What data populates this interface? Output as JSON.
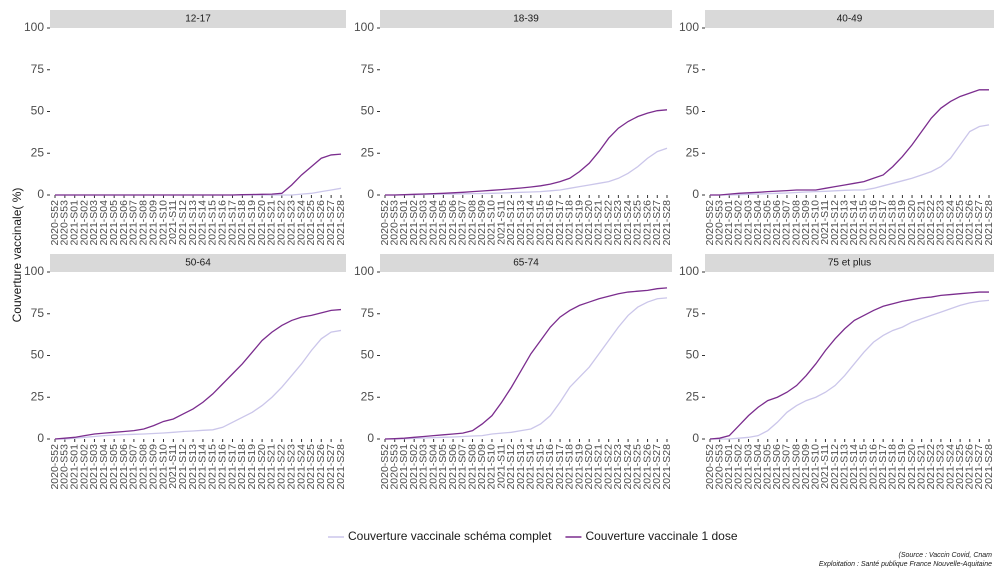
{
  "chart_data": [
    {
      "type": "line",
      "title": "12-17",
      "categories": [
        "2020-S52",
        "2020-S53",
        "2021-S01",
        "2021-S02",
        "2021-S03",
        "2021-S04",
        "2021-S05",
        "2021-S06",
        "2021-S07",
        "2021-S08",
        "2021-S09",
        "2021-S10",
        "2021-S11",
        "2021-S12",
        "2021-S13",
        "2021-S14",
        "2021-S15",
        "2021-S16",
        "2021-S17",
        "2021-S18",
        "2021-S19",
        "2021-S20",
        "2021-S21",
        "2021-S22",
        "2021-S23",
        "2021-S24",
        "2021-S25",
        "2021-S26",
        "2021-S27",
        "2021-S28"
      ],
      "series": [
        {
          "name": "Couverture vaccinale schéma complet",
          "color": "#cbc6ea",
          "values": [
            0,
            0,
            0,
            0,
            0,
            0,
            0,
            0,
            0,
            0,
            0,
            0,
            0,
            0,
            0,
            0,
            0,
            0,
            0,
            0,
            0,
            0,
            0,
            0,
            0,
            0.5,
            1,
            2,
            3,
            4
          ]
        },
        {
          "name": "Couverture vaccinale 1 dose",
          "color": "#7b2d8e",
          "values": [
            0,
            0,
            0,
            0,
            0,
            0,
            0,
            0,
            0,
            0,
            0,
            0,
            0,
            0,
            0,
            0,
            0,
            0,
            0,
            0.2,
            0.3,
            0.4,
            0.5,
            1,
            6,
            12,
            17,
            22,
            24,
            24.5
          ]
        }
      ],
      "ylim": [
        0,
        100
      ],
      "yticks": [
        0,
        25,
        50,
        75,
        100
      ],
      "grid": false
    },
    {
      "type": "line",
      "title": "18-39",
      "categories": [
        "2020-S52",
        "2020-S53",
        "2021-S01",
        "2021-S02",
        "2021-S03",
        "2021-S04",
        "2021-S05",
        "2021-S06",
        "2021-S07",
        "2021-S08",
        "2021-S09",
        "2021-S10",
        "2021-S11",
        "2021-S12",
        "2021-S13",
        "2021-S14",
        "2021-S15",
        "2021-S16",
        "2021-S17",
        "2021-S18",
        "2021-S19",
        "2021-S20",
        "2021-S21",
        "2021-S22",
        "2021-S23",
        "2021-S24",
        "2021-S25",
        "2021-S26",
        "2021-S27",
        "2021-S28"
      ],
      "series": [
        {
          "name": "Couverture vaccinale schéma complet",
          "color": "#cbc6ea",
          "values": [
            0,
            0,
            0.1,
            0.2,
            0.3,
            0.4,
            0.5,
            0.6,
            0.7,
            0.8,
            0.9,
            1,
            1.2,
            1.4,
            1.6,
            1.8,
            2,
            2.5,
            3,
            4,
            5,
            6,
            7,
            8,
            10,
            13,
            17,
            22,
            26,
            28
          ]
        },
        {
          "name": "Couverture vaccinale 1 dose",
          "color": "#7b2d8e",
          "values": [
            0,
            0,
            0.2,
            0.4,
            0.6,
            0.8,
            1,
            1.3,
            1.6,
            2,
            2.4,
            2.8,
            3.2,
            3.7,
            4.2,
            4.8,
            5.5,
            6.5,
            8,
            10,
            14,
            19,
            26,
            34,
            40,
            44,
            47,
            49,
            50.5,
            51
          ]
        }
      ],
      "ylim": [
        0,
        100
      ],
      "yticks": [
        0,
        25,
        50,
        75,
        100
      ],
      "grid": false
    },
    {
      "type": "line",
      "title": "40-49",
      "categories": [
        "2020-S52",
        "2020-S53",
        "2021-S01",
        "2021-S02",
        "2021-S03",
        "2021-S04",
        "2021-S05",
        "2021-S06",
        "2021-S07",
        "2021-S08",
        "2021-S09",
        "2021-S10",
        "2021-S11",
        "2021-S12",
        "2021-S13",
        "2021-S14",
        "2021-S15",
        "2021-S16",
        "2021-S17",
        "2021-S18",
        "2021-S19",
        "2021-S20",
        "2021-S21",
        "2021-S22",
        "2021-S23",
        "2021-S24",
        "2021-S25",
        "2021-S26",
        "2021-S27",
        "2021-S28"
      ],
      "series": [
        {
          "name": "Couverture vaccinale schéma complet",
          "color": "#cbc6ea",
          "values": [
            0,
            0,
            0.1,
            0.2,
            0.4,
            0.6,
            0.8,
            1,
            1.2,
            1.5,
            1.8,
            2,
            2.2,
            2.5,
            2.8,
            3,
            3,
            4,
            5.5,
            7,
            8.5,
            10,
            12,
            14,
            17,
            22,
            30,
            38,
            41,
            42
          ]
        },
        {
          "name": "Couverture vaccinale 1 dose",
          "color": "#7b2d8e",
          "values": [
            0,
            0,
            0.5,
            1,
            1.3,
            1.6,
            2,
            2.3,
            2.6,
            3,
            3,
            3,
            4,
            5,
            6,
            7,
            8,
            10,
            12,
            17,
            23,
            30,
            38,
            46,
            52,
            56,
            59,
            61,
            63,
            63
          ]
        }
      ],
      "ylim": [
        0,
        100
      ],
      "yticks": [
        0,
        25,
        50,
        75,
        100
      ],
      "grid": false
    },
    {
      "type": "line",
      "title": "50-64",
      "categories": [
        "2020-S52",
        "2020-S53",
        "2021-S01",
        "2021-S02",
        "2021-S03",
        "2021-S04",
        "2021-S05",
        "2021-S06",
        "2021-S07",
        "2021-S08",
        "2021-S09",
        "2021-S10",
        "2021-S11",
        "2021-S12",
        "2021-S13",
        "2021-S14",
        "2021-S15",
        "2021-S16",
        "2021-S17",
        "2021-S18",
        "2021-S19",
        "2021-S20",
        "2021-S21",
        "2021-S22",
        "2021-S23",
        "2021-S24",
        "2021-S25",
        "2021-S26",
        "2021-S27",
        "2021-S28"
      ],
      "series": [
        {
          "name": "Couverture vaccinale schéma complet",
          "color": "#cbc6ea",
          "values": [
            0,
            0,
            0.5,
            1,
            1.5,
            2,
            2.3,
            2.6,
            2.8,
            3,
            3.3,
            3.6,
            4,
            4.5,
            4.8,
            5.2,
            5.5,
            7,
            10,
            13,
            16,
            20,
            25,
            31,
            38,
            45,
            53,
            60,
            64,
            65
          ]
        },
        {
          "name": "Couverture vaccinale 1 dose",
          "color": "#7b2d8e",
          "values": [
            0,
            0.5,
            1,
            2,
            3,
            3.5,
            4,
            4.5,
            5,
            6,
            8,
            10.5,
            12,
            15,
            18,
            22,
            27,
            33,
            39,
            45,
            52,
            59,
            64,
            68,
            71,
            73,
            74,
            75.5,
            77,
            77.5
          ]
        }
      ],
      "ylim": [
        0,
        100
      ],
      "yticks": [
        0,
        25,
        50,
        75,
        100
      ],
      "grid": false
    },
    {
      "type": "line",
      "title": "65-74",
      "categories": [
        "2020-S52",
        "2020-S53",
        "2021-S01",
        "2021-S02",
        "2021-S03",
        "2021-S04",
        "2021-S05",
        "2021-S06",
        "2021-S07",
        "2021-S08",
        "2021-S09",
        "2021-S10",
        "2021-S11",
        "2021-S12",
        "2021-S13",
        "2021-S14",
        "2021-S15",
        "2021-S16",
        "2021-S17",
        "2021-S18",
        "2021-S19",
        "2021-S20",
        "2021-S21",
        "2021-S22",
        "2021-S23",
        "2021-S24",
        "2021-S25",
        "2021-S26",
        "2021-S27",
        "2021-S28"
      ],
      "series": [
        {
          "name": "Couverture vaccinale schéma complet",
          "color": "#cbc6ea",
          "values": [
            0,
            0,
            0.2,
            0.4,
            0.6,
            0.8,
            1,
            1.2,
            1.5,
            1.8,
            2,
            3,
            3.5,
            4,
            5,
            6,
            9,
            14,
            22,
            31,
            37,
            43,
            51,
            59,
            67,
            74,
            79,
            82,
            84,
            84.5
          ]
        },
        {
          "name": "Couverture vaccinale 1 dose",
          "color": "#7b2d8e",
          "values": [
            0,
            0.2,
            0.5,
            1,
            1.5,
            2,
            2.5,
            3,
            3.5,
            5,
            9,
            14,
            22,
            31,
            41,
            51,
            59,
            67,
            73,
            77,
            80,
            82,
            84,
            85.5,
            87,
            88,
            88.5,
            89,
            90,
            90.5
          ]
        }
      ],
      "ylim": [
        0,
        100
      ],
      "yticks": [
        0,
        25,
        50,
        75,
        100
      ],
      "grid": false
    },
    {
      "type": "line",
      "title": "75 et plus",
      "categories": [
        "2020-S52",
        "2020-S53",
        "2021-S01",
        "2021-S02",
        "2021-S03",
        "2021-S04",
        "2021-S05",
        "2021-S06",
        "2021-S07",
        "2021-S08",
        "2021-S09",
        "2021-S10",
        "2021-S11",
        "2021-S12",
        "2021-S13",
        "2021-S14",
        "2021-S15",
        "2021-S16",
        "2021-S17",
        "2021-S18",
        "2021-S19",
        "2021-S20",
        "2021-S21",
        "2021-S22",
        "2021-S23",
        "2021-S24",
        "2021-S25",
        "2021-S26",
        "2021-S27",
        "2021-S28"
      ],
      "series": [
        {
          "name": "Couverture vaccinale schéma complet",
          "color": "#cbc6ea",
          "values": [
            0,
            0,
            0,
            0.5,
            1,
            2,
            5,
            10,
            16,
            20,
            23,
            25,
            28,
            32,
            38,
            45,
            52,
            58,
            62,
            65,
            67,
            70,
            72,
            74,
            76,
            78,
            80,
            81.5,
            82.5,
            83
          ]
        },
        {
          "name": "Couverture vaccinale 1 dose",
          "color": "#7b2d8e",
          "values": [
            0,
            0.5,
            2,
            8,
            14,
            19,
            23,
            25,
            28,
            32,
            38,
            45,
            53,
            60,
            66,
            71,
            74,
            77,
            79.5,
            81,
            82.5,
            83.5,
            84.5,
            85,
            86,
            86.5,
            87,
            87.5,
            88,
            88
          ]
        }
      ],
      "ylim": [
        0,
        100
      ],
      "yticks": [
        0,
        25,
        50,
        75,
        100
      ],
      "grid": false
    }
  ],
  "y_label": "Couverture vaccinale( %)",
  "source": [
    "(Source : Vaccin Covid, Cnam",
    "Exploitation : Santé publique France Nouvelle-Aquitaine"
  ]
}
